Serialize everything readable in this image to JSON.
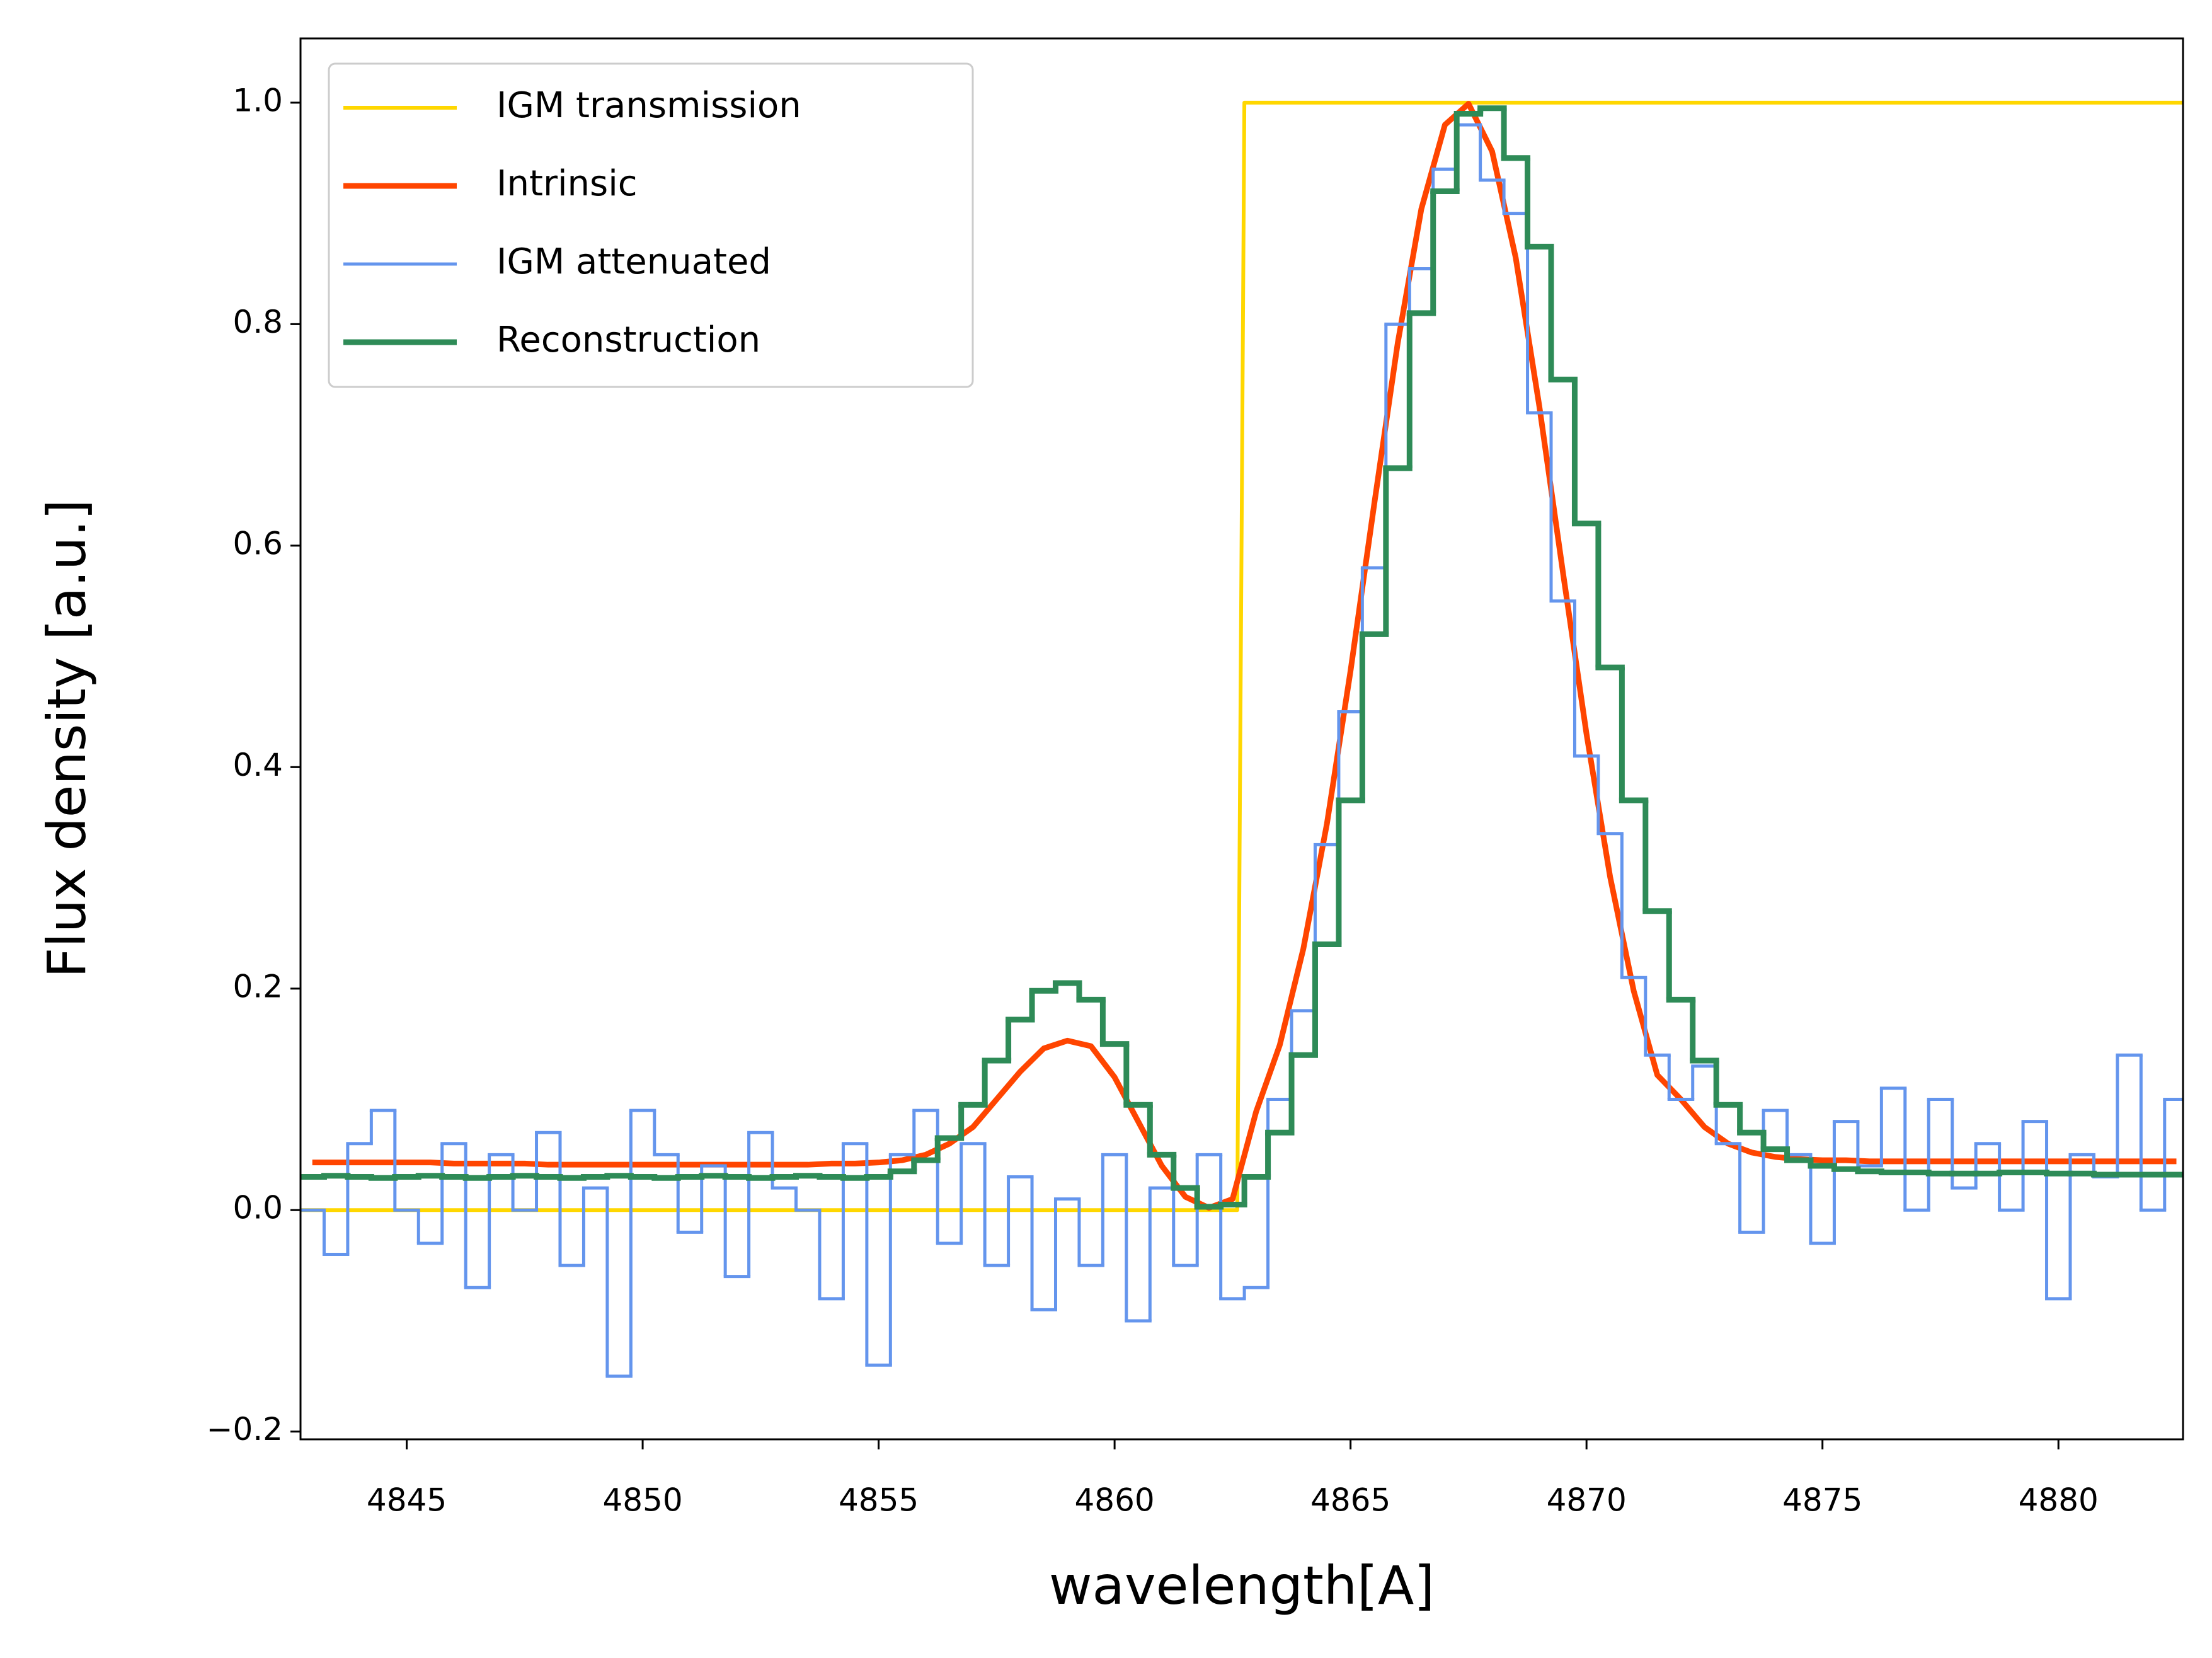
{
  "chart_data": {
    "type": "line",
    "x_label": "wavelength[A]",
    "y_label": "Flux density [a.u.]",
    "xlim": [
      4842.75,
      4882.64
    ],
    "ylim": [
      -0.207,
      1.058
    ],
    "xticks": [
      4845,
      4850,
      4855,
      4860,
      4865,
      4870,
      4875,
      4880
    ],
    "yticks": [
      {
        "value": -0.2,
        "label": "−0.2"
      },
      {
        "value": 0,
        "label": "0.0"
      },
      0.2,
      0.4,
      0.6,
      0.8,
      {
        "value": 1,
        "label": "1.0"
      }
    ],
    "legend": "upper left",
    "x": [
      4843,
      4843.5,
      4844,
      4844.5,
      4845,
      4845.5,
      4846,
      4846.5,
      4847,
      4847.5,
      4848,
      4848.5,
      4849,
      4849.5,
      4850,
      4850.5,
      4851,
      4851.5,
      4852,
      4852.5,
      4853,
      4853.5,
      4854,
      4854.5,
      4855,
      4855.5,
      4856,
      4856.5,
      4857,
      4857.5,
      4858,
      4858.5,
      4859,
      4859.5,
      4860,
      4860.5,
      4861,
      4861.5,
      4862,
      4862.5,
      4863,
      4863.5,
      4864,
      4864.5,
      4865,
      4865.5,
      4866,
      4866.5,
      4867,
      4867.5,
      4868,
      4868.5,
      4869,
      4869.5,
      4870,
      4870.5,
      4871,
      4871.5,
      4872,
      4872.5,
      4873,
      4873.5,
      4874,
      4874.5,
      4875,
      4875.5,
      4876,
      4876.5,
      4877,
      4877.5,
      4878,
      4878.5,
      4879,
      4879.5,
      4880,
      4880.5,
      4881,
      4881.5,
      4882,
      4882.5
    ],
    "series": [
      {
        "name": "IGM transmission",
        "color": "#ffd700",
        "drawstyle": "line",
        "x": [
          4842.75,
          4862.6,
          4862.75,
          4882.64
        ],
        "values": [
          0,
          0,
          1,
          1
        ]
      },
      {
        "name": "Intrinsic",
        "color": "#ff4500",
        "drawstyle": "line",
        "values": [
          0.043,
          0.043,
          0.043,
          0.043,
          0.043,
          0.043,
          0.042,
          0.042,
          0.042,
          0.042,
          0.041,
          0.041,
          0.041,
          0.041,
          0.041,
          0.041,
          0.041,
          0.041,
          0.041,
          0.041,
          0.041,
          0.041,
          0.042,
          0.042,
          0.043,
          0.045,
          0.05,
          0.06,
          0.075,
          0.1,
          0.125,
          0.146,
          0.153,
          0.148,
          0.12,
          0.08,
          0.04,
          0.012,
          0.002,
          0.01,
          0.089,
          0.149,
          0.236,
          0.349,
          0.487,
          0.637,
          0.783,
          0.904,
          0.98,
          0.999,
          0.956,
          0.86,
          0.726,
          0.576,
          0.43,
          0.301,
          0.198,
          0.122,
          0.1,
          0.075,
          0.06,
          0.052,
          0.048,
          0.046,
          0.045,
          0.045,
          0.044,
          0.044,
          0.044,
          0.044,
          0.044,
          0.044,
          0.044,
          0.044,
          0.044,
          0.044,
          0.044,
          0.044,
          0.044,
          0.044
        ]
      },
      {
        "name": "IGM attenuated",
        "color": "#6495ed",
        "drawstyle": "steps-mid",
        "values": [
          0.0,
          -0.04,
          0.06,
          0.09,
          0.0,
          -0.03,
          0.06,
          -0.07,
          0.05,
          0.0,
          0.07,
          -0.05,
          0.02,
          -0.15,
          0.09,
          0.05,
          -0.02,
          0.04,
          -0.06,
          0.07,
          0.02,
          0.0,
          -0.08,
          0.06,
          -0.14,
          0.05,
          0.09,
          -0.03,
          0.06,
          -0.05,
          0.03,
          -0.09,
          0.01,
          -0.05,
          0.05,
          -0.1,
          0.02,
          -0.05,
          0.05,
          -0.08,
          -0.07,
          0.1,
          0.18,
          0.33,
          0.45,
          0.58,
          0.8,
          0.85,
          0.94,
          0.98,
          0.93,
          0.9,
          0.72,
          0.55,
          0.41,
          0.34,
          0.21,
          0.14,
          0.1,
          0.13,
          0.06,
          -0.02,
          0.09,
          0.05,
          -0.03,
          0.08,
          0.04,
          0.11,
          0.0,
          0.1,
          0.02,
          0.06,
          0.0,
          0.08,
          -0.08,
          0.05,
          0.03,
          0.14,
          0.0,
          0.1
        ]
      },
      {
        "name": "Reconstruction",
        "color": "#2e8b57",
        "drawstyle": "steps-mid",
        "values": [
          0.03,
          0.031,
          0.03,
          0.029,
          0.03,
          0.031,
          0.03,
          0.029,
          0.03,
          0.031,
          0.03,
          0.029,
          0.03,
          0.031,
          0.03,
          0.029,
          0.03,
          0.031,
          0.03,
          0.029,
          0.03,
          0.031,
          0.03,
          0.029,
          0.03,
          0.035,
          0.045,
          0.065,
          0.095,
          0.135,
          0.172,
          0.198,
          0.205,
          0.19,
          0.15,
          0.095,
          0.05,
          0.02,
          0.003,
          0.005,
          0.03,
          0.07,
          0.14,
          0.24,
          0.37,
          0.52,
          0.67,
          0.81,
          0.92,
          0.99,
          0.995,
          0.95,
          0.87,
          0.75,
          0.62,
          0.49,
          0.37,
          0.27,
          0.19,
          0.135,
          0.095,
          0.07,
          0.055,
          0.045,
          0.04,
          0.037,
          0.035,
          0.034,
          0.034,
          0.033,
          0.033,
          0.033,
          0.034,
          0.034,
          0.033,
          0.033,
          0.032,
          0.032,
          0.032,
          0.032
        ]
      }
    ]
  }
}
